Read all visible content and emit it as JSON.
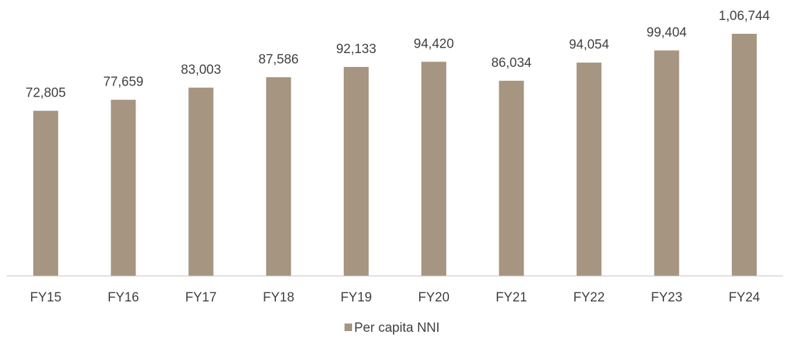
{
  "chart_data": {
    "type": "bar",
    "categories": [
      "FY15",
      "FY16",
      "FY17",
      "FY18",
      "FY19",
      "FY20",
      "FY21",
      "FY22",
      "FY23",
      "FY24"
    ],
    "series": [
      {
        "name": "Per capita NNI",
        "color": "#a69580",
        "values": [
          72805,
          77659,
          83003,
          87586,
          92133,
          94420,
          86034,
          94054,
          99404,
          106744
        ],
        "value_labels": [
          "72,805",
          "77,659",
          "83,003",
          "87,586",
          "92,133",
          "94,420",
          "86,034",
          "94,054",
          "99,404",
          "1,06,744"
        ]
      }
    ],
    "legend": "bottom"
  }
}
